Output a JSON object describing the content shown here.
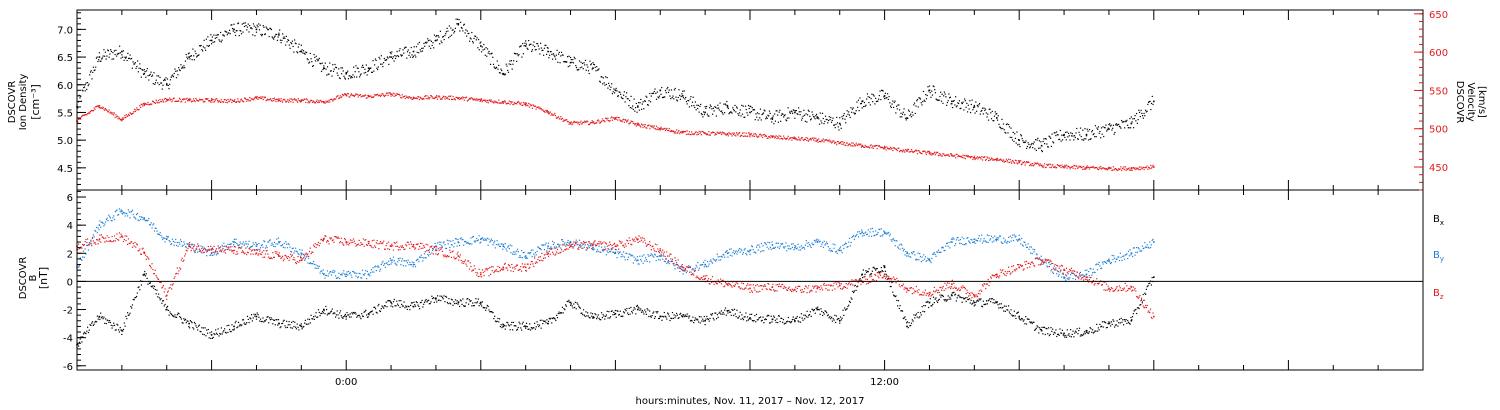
{
  "chart_data": {
    "type": "scatter",
    "xlabel": "hours:minutes, Nov. 11, 2017 – Nov. 12, 2017",
    "x_unit": "hours relative to Nov. 12, 2017 00:00",
    "xlim": [
      -6,
      24
    ],
    "x_ticks": [
      {
        "value": 0,
        "label": "0:00"
      },
      {
        "value": 12,
        "label": "12:00"
      }
    ],
    "panels": [
      {
        "name": "density-velocity",
        "ylabel_left": [
          "DSCOVR",
          "Ion Density",
          "[cm⁻³]"
        ],
        "ylim_left": [
          4.1,
          7.35
        ],
        "yticks_left": [
          4.5,
          5.0,
          5.5,
          6.0,
          6.5,
          7.0
        ],
        "ylabel_right": [
          "DSCOVR",
          "Velocity",
          "[km/s]"
        ],
        "ylim_right": [
          420,
          655
        ],
        "yticks_right": [
          450,
          500,
          550,
          600,
          650
        ],
        "right_axis_color": "#e41a1c",
        "series": [
          {
            "name": "Ion Density",
            "axis": "left",
            "color": "#000000",
            "x": [
              -6,
              -5.5,
              -5,
              -4.5,
              -4,
              -3.5,
              -3,
              -2.5,
              -2,
              -1.5,
              -1,
              -0.5,
              0,
              0.5,
              1,
              1.5,
              2,
              2.5,
              3,
              3.5,
              4,
              4.5,
              5,
              5.5,
              6,
              6.5,
              7,
              7.5,
              8,
              8.5,
              9,
              9.5,
              10,
              10.5,
              11,
              11.5,
              12,
              12.5,
              13,
              13.5,
              14,
              14.5,
              15,
              15.5,
              16,
              16.5,
              17,
              17.5,
              18
            ],
            "y": [
              5.6,
              6.5,
              6.6,
              6.2,
              6.0,
              6.5,
              6.8,
              7.0,
              7.0,
              6.9,
              6.6,
              6.3,
              6.2,
              6.3,
              6.5,
              6.6,
              6.8,
              7.1,
              6.7,
              6.2,
              6.7,
              6.6,
              6.4,
              6.3,
              5.9,
              5.6,
              5.9,
              5.8,
              5.5,
              5.6,
              5.5,
              5.4,
              5.5,
              5.4,
              5.3,
              5.7,
              5.8,
              5.4,
              5.9,
              5.7,
              5.6,
              5.4,
              5.0,
              4.9,
              5.1,
              5.1,
              5.2,
              5.3,
              5.7
            ]
          },
          {
            "name": "Velocity",
            "axis": "right",
            "color": "#e41a1c",
            "x": [
              -6,
              -5.5,
              -5,
              -4.5,
              -4,
              -3.5,
              -3,
              -2.5,
              -2,
              -1.5,
              -1,
              -0.5,
              0,
              0.5,
              1,
              1.5,
              2,
              2.5,
              3,
              3.5,
              4,
              4.5,
              5,
              5.5,
              6,
              6.5,
              7,
              7.5,
              8,
              8.5,
              9,
              9.5,
              10,
              10.5,
              11,
              11.5,
              12,
              12.5,
              13,
              13.5,
              14,
              14.5,
              15,
              15.5,
              16,
              16.5,
              17,
              17.5,
              18
            ],
            "y": [
              510,
              530,
              512,
              532,
              538,
              537,
              537,
              536,
              540,
              537,
              537,
              535,
              544,
              542,
              545,
              540,
              541,
              540,
              537,
              535,
              532,
              522,
              507,
              508,
              514,
              505,
              500,
              495,
              494,
              493,
              492,
              489,
              487,
              485,
              481,
              478,
              475,
              471,
              468,
              465,
              462,
              460,
              456,
              452,
              450,
              449,
              448,
              448,
              450
            ]
          }
        ]
      },
      {
        "name": "magnetic-field",
        "ylabel_left": [
          "DSCOVR",
          "B",
          "[nT]"
        ],
        "ylim_left": [
          -6.3,
          6.5
        ],
        "yticks_left": [
          -6,
          -4,
          -2,
          0,
          2,
          4,
          6
        ],
        "zero_line": true,
        "series": [
          {
            "name": "Bx",
            "color": "#000000",
            "x": [
              -6,
              -5.5,
              -5,
              -4.5,
              -4,
              -3.5,
              -3,
              -2.5,
              -2,
              -1.5,
              -1,
              -0.5,
              0,
              0.5,
              1,
              1.5,
              2,
              2.5,
              3,
              3.5,
              4,
              4.5,
              5,
              5.5,
              6,
              6.5,
              7,
              7.5,
              8,
              8.5,
              9,
              9.5,
              10,
              10.5,
              11,
              11.5,
              12,
              12.5,
              13,
              13.5,
              14,
              14.5,
              15,
              15.5,
              16,
              16.5,
              17,
              17.5,
              18
            ],
            "y": [
              -4.5,
              -2.5,
              -3.5,
              0.5,
              -2.0,
              -3.0,
              -3.8,
              -3.2,
              -2.5,
              -3.0,
              -3.2,
              -2.0,
              -2.5,
              -2.3,
              -1.5,
              -1.8,
              -1.2,
              -1.5,
              -1.5,
              -3.2,
              -3.2,
              -3.0,
              -1.5,
              -2.6,
              -2.3,
              -2.0,
              -2.5,
              -2.5,
              -2.8,
              -2.1,
              -2.6,
              -2.7,
              -2.8,
              -2.0,
              -2.8,
              0.5,
              1.0,
              -3.2,
              -1.5,
              -1.0,
              -1.5,
              -1.5,
              -2.5,
              -3.5,
              -3.7,
              -3.6,
              -3.0,
              -2.8,
              0.3
            ]
          },
          {
            "name": "By",
            "color": "#1f7fd6",
            "x": [
              -6,
              -5.5,
              -5,
              -4.5,
              -4,
              -3.5,
              -3,
              -2.5,
              -2,
              -1.5,
              -1,
              -0.5,
              0,
              0.5,
              1,
              1.5,
              2,
              2.5,
              3,
              3.5,
              4,
              4.5,
              5,
              5.5,
              6,
              6.5,
              7,
              7.5,
              8,
              8.5,
              9,
              9.5,
              10,
              10.5,
              11,
              11.5,
              12,
              12.5,
              13,
              13.5,
              14,
              14.5,
              15,
              15.5,
              16,
              16.5,
              17,
              17.5,
              18
            ],
            "y": [
              1.0,
              4.0,
              5.0,
              4.5,
              3.0,
              2.5,
              2.0,
              2.8,
              2.5,
              2.8,
              2.0,
              0.5,
              0.5,
              0.5,
              1.5,
              1.2,
              2.5,
              2.8,
              3.0,
              2.5,
              1.8,
              2.5,
              2.8,
              2.4,
              2.0,
              1.5,
              1.8,
              0.8,
              1.2,
              2.0,
              2.2,
              2.6,
              2.4,
              2.8,
              2.2,
              3.5,
              3.5,
              2.0,
              1.5,
              2.8,
              3.0,
              3.0,
              3.0,
              1.5,
              0.3,
              0.5,
              1.5,
              2.0,
              2.8
            ]
          },
          {
            "name": "Bz",
            "color": "#e41a1c",
            "x": [
              -6,
              -5.5,
              -5,
              -4.5,
              -4,
              -3.5,
              -3,
              -2.5,
              -2,
              -1.5,
              -1,
              -0.5,
              0,
              0.5,
              1,
              1.5,
              2,
              2.5,
              3,
              3.5,
              4,
              4.5,
              5,
              5.5,
              6,
              6.5,
              7,
              7.5,
              8,
              8.5,
              9,
              9.5,
              10,
              10.5,
              11,
              11.5,
              12,
              12.5,
              13,
              13.5,
              14,
              14.5,
              15,
              15.5,
              16,
              16.5,
              17,
              17.5,
              18
            ],
            "y": [
              2.5,
              3.0,
              3.2,
              2.0,
              -1.0,
              2.5,
              2.3,
              2.2,
              2.0,
              1.8,
              1.5,
              3.0,
              2.8,
              2.7,
              2.5,
              2.6,
              2.2,
              1.8,
              0.5,
              1.0,
              1.0,
              2.0,
              2.5,
              2.6,
              2.5,
              3.0,
              2.2,
              1.0,
              0.2,
              -0.2,
              -0.5,
              -0.4,
              -0.6,
              -0.5,
              -0.3,
              0.0,
              0.5,
              -0.5,
              -0.8,
              -0.2,
              -1.0,
              0.5,
              1.0,
              1.5,
              0.8,
              0.3,
              -0.5,
              -0.4,
              -2.5
            ]
          }
        ]
      }
    ],
    "legend": [
      {
        "label": "Bx",
        "color": "#000000"
      },
      {
        "label": "By",
        "color": "#1f7fd6"
      },
      {
        "label": "Bz",
        "color": "#e41a1c"
      }
    ]
  }
}
